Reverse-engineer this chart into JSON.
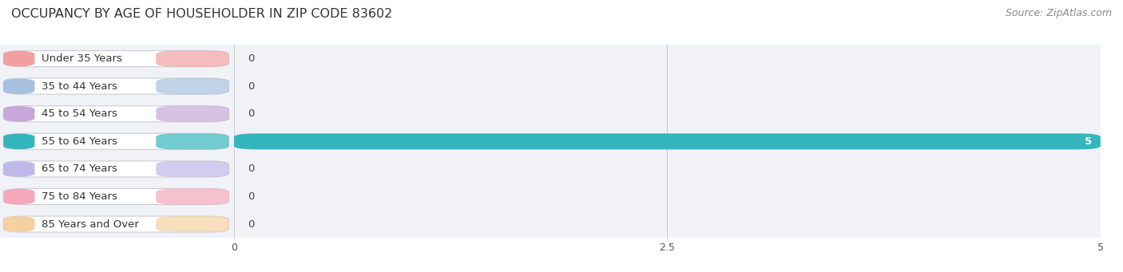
{
  "title": "OCCUPANCY BY AGE OF HOUSEHOLDER IN ZIP CODE 83602",
  "source": "Source: ZipAtlas.com",
  "categories": [
    "Under 35 Years",
    "35 to 44 Years",
    "45 to 54 Years",
    "55 to 64 Years",
    "65 to 74 Years",
    "75 to 84 Years",
    "85 Years and Over"
  ],
  "values": [
    0,
    0,
    0,
    5,
    0,
    0,
    0
  ],
  "bar_colors": [
    "#f0a0a0",
    "#a8c0e0",
    "#c8a8d8",
    "#35b5be",
    "#c0b8e8",
    "#f5a8bc",
    "#f5d0a0"
  ],
  "bar_bg_color": "#ffffff",
  "row_bg_color": "#f0f2f8",
  "xlim": [
    0,
    5
  ],
  "xticks": [
    0,
    2.5,
    5
  ],
  "background_color": "#ffffff",
  "title_fontsize": 11.5,
  "source_fontsize": 9,
  "bar_height": 0.58,
  "value_label_color_active": "#ffffff",
  "value_label_color_zero": "#444444",
  "label_fontsize": 9.5,
  "tick_fontsize": 9
}
